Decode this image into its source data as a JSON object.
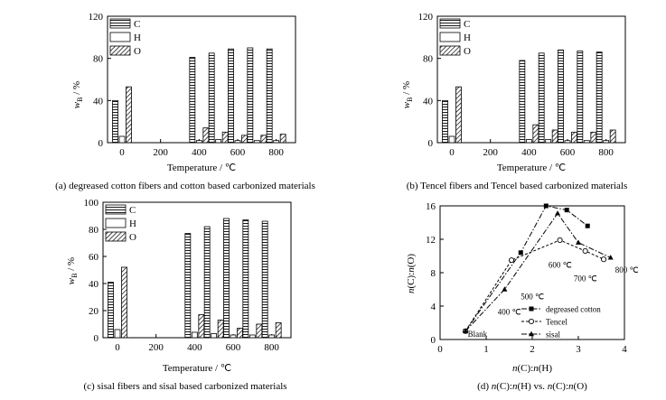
{
  "colors": {
    "ink": "#000000",
    "background": "#ffffff"
  },
  "chart_data": [
    {
      "panel": "a",
      "type": "bar",
      "caption": "(a) degreased cotton fibers and cotton based carbonized materials",
      "xlabel": "Temperature / ℃",
      "ylabel_main": "w",
      "ylabel_sub": "B",
      "ylabel_unit": " / %",
      "ylim": [
        0,
        120
      ],
      "yticks": [
        "0",
        "40",
        "80",
        "120"
      ],
      "xlim": [
        -75,
        900
      ],
      "xticks": [
        "0",
        "200",
        "400",
        "600",
        "800"
      ],
      "categories": [
        "0",
        "400",
        "500",
        "600",
        "700",
        "800"
      ],
      "series": [
        {
          "name": "C",
          "pattern": "horizontal",
          "values": [
            40,
            81,
            85,
            89,
            90,
            89
          ]
        },
        {
          "name": "H",
          "pattern": "blank",
          "values": [
            6,
            2,
            3,
            2,
            2,
            2
          ]
        },
        {
          "name": "O",
          "pattern": "hatch",
          "values": [
            53,
            14,
            10,
            7,
            7,
            8
          ]
        }
      ]
    },
    {
      "panel": "b",
      "type": "bar",
      "caption": "(b) Tencel fibers and Tencel based carbonized materials",
      "xlabel": "Temperature / ℃",
      "ylabel_main": "w",
      "ylabel_sub": "B",
      "ylabel_unit": " / %",
      "ylim": [
        0,
        120
      ],
      "yticks": [
        "0",
        "40",
        "80",
        "120"
      ],
      "xlim": [
        -75,
        900
      ],
      "xticks": [
        "0",
        "200",
        "400",
        "600",
        "800"
      ],
      "categories": [
        "0",
        "400",
        "500",
        "600",
        "700",
        "800"
      ],
      "series": [
        {
          "name": "C",
          "pattern": "horizontal",
          "values": [
            40,
            78,
            85,
            88,
            87,
            86
          ]
        },
        {
          "name": "H",
          "pattern": "blank",
          "values": [
            6,
            3,
            3,
            2,
            2,
            2
          ]
        },
        {
          "name": "O",
          "pattern": "hatch",
          "values": [
            53,
            17,
            12,
            10,
            10,
            12
          ]
        }
      ]
    },
    {
      "panel": "c",
      "type": "bar",
      "caption": "(c) sisal fibers and sisal based carbonized materials",
      "xlabel": "Temperature / ℃",
      "ylabel_main": "w",
      "ylabel_sub": "B",
      "ylabel_unit": " / %",
      "ylim": [
        0,
        100
      ],
      "yticks": [
        "0",
        "20",
        "40",
        "60",
        "80",
        "100"
      ],
      "xlim": [
        -75,
        900
      ],
      "xticks": [
        "0",
        "200",
        "400",
        "600",
        "800"
      ],
      "categories": [
        "0",
        "400",
        "500",
        "600",
        "700",
        "800"
      ],
      "series": [
        {
          "name": "C",
          "pattern": "horizontal",
          "values": [
            41,
            77,
            82,
            88,
            87,
            86
          ]
        },
        {
          "name": "H",
          "pattern": "blank",
          "values": [
            6,
            4,
            3,
            2,
            2,
            2
          ]
        },
        {
          "name": "O",
          "pattern": "hatch",
          "values": [
            52,
            17,
            13,
            7,
            10,
            11
          ]
        }
      ]
    },
    {
      "panel": "d",
      "type": "line",
      "caption_prefix": "(d) ",
      "caption_a": "n",
      "caption_b": "(C):",
      "caption_c": "n",
      "caption_d": "(H) vs. ",
      "caption_e": "n",
      "caption_f": "(C):",
      "caption_g": "n",
      "caption_h": "(O)",
      "xlabel_a": "n",
      "xlabel_b": "(C):",
      "xlabel_c": "n",
      "xlabel_d": "(H)",
      "ylabel_a": "n",
      "ylabel_b": "(C):",
      "ylabel_c": "n",
      "ylabel_d": "(O)",
      "xlim": [
        0,
        4
      ],
      "ylim": [
        0,
        16
      ],
      "xticks": [
        "0",
        "1",
        "2",
        "3",
        "4"
      ],
      "yticks": [
        "0",
        "4",
        "8",
        "12",
        "16"
      ],
      "series": [
        {
          "name": "degreased cotton",
          "marker": "square",
          "dash": "dash-dot",
          "x": [
            0.55,
            1.75,
            2.3,
            2.75,
            3.2
          ],
          "y": [
            1.0,
            10.4,
            16.0,
            15.5,
            13.6
          ]
        },
        {
          "name": "Tencel",
          "marker": "open-circle",
          "dash": "dash",
          "x": [
            0.55,
            1.55,
            2.6,
            3.15,
            3.55
          ],
          "y": [
            1.0,
            9.5,
            11.9,
            10.6,
            9.6
          ]
        },
        {
          "name": "sisal",
          "marker": "triangle",
          "dash": "dash-dot",
          "x": [
            0.55,
            1.4,
            2.55,
            3.0,
            3.7
          ],
          "y": [
            1.0,
            6.0,
            15.1,
            11.6,
            9.8
          ]
        }
      ],
      "annotations": [
        "Blank",
        "400 ℃",
        "500 ℃",
        "600 ℃",
        "700 ℃",
        "800 ℃"
      ]
    }
  ]
}
